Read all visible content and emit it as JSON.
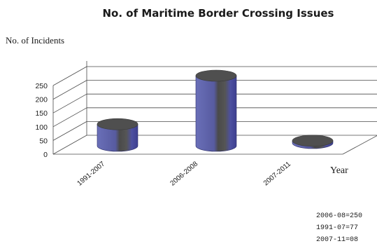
{
  "chart_data": {
    "type": "bar",
    "title": "No. of Maritime Border Crossing Issues",
    "ylabel": "No. of Incidents",
    "xlabel": "Year",
    "categories": [
      "1991-2007",
      "2006-2008",
      "2007-2011"
    ],
    "values": [
      77,
      250,
      8
    ],
    "ylim": [
      0,
      250
    ],
    "yticks": [
      "0",
      "50",
      "100",
      "150",
      "200",
      "250"
    ],
    "bar_shape": "cylinder",
    "bar_color": "#5b5ea8",
    "annotations": [
      "2006-08=250",
      "1991-07=77",
      "2007-11=08"
    ]
  }
}
